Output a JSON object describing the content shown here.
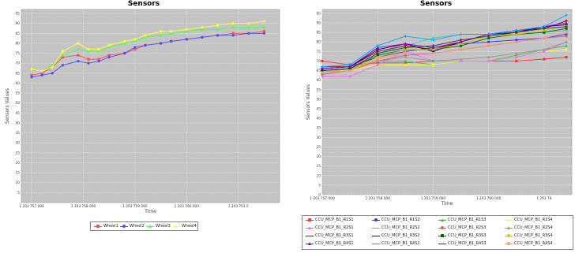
{
  "left_chart": {
    "title": "Sensors",
    "xlabel": "Time",
    "ylabel": "Sensors Values",
    "y_ticks": [
      "5",
      "10",
      "15",
      "20",
      "25",
      "30",
      "35",
      "40",
      "45",
      "50",
      "55",
      "60",
      "65",
      "70",
      "75",
      "80",
      "85",
      "90",
      "95"
    ],
    "x_ticks": [
      "1 203 757 000",
      "1 203 758 000",
      "1 203 759 000",
      "1 203 760 000",
      "1 203 761 0"
    ],
    "legend": [
      "Wheel1",
      "Wheel2",
      "Wheel3",
      "Wheel4"
    ]
  },
  "right_chart": {
    "title": "Sensors",
    "xlabel": "Time",
    "ylabel": "Sensors Values",
    "y_ticks": [
      "0",
      "5",
      "10",
      "15",
      "20",
      "25",
      "30",
      "35",
      "40",
      "45",
      "50",
      "55",
      "60",
      "65",
      "70",
      "75",
      "80",
      "85",
      "90",
      "95"
    ],
    "x_ticks": [
      "1 203 757 000",
      "1 203 758 000",
      "1 203 759 000",
      "1 203 760 000",
      "1 203 76"
    ],
    "legend": [
      "CCU_MCP_B1_R1S1",
      "CCU_MCP_B1_R1S2",
      "CCU_MCP_B1_R1S3",
      "CCU_MCP_B1_R1S4",
      "CCU_MCP_B1_R2S1",
      "CCU_MCP_B1_R2S2",
      "CCU_MCP_B1_R2S3",
      "CCU_MCP_B1_R2S4",
      "CCU_MCP_B1_R3S1",
      "CCU_MCP_B1_R3S2",
      "CCU_MCP_B1_R3S3",
      "CCU_MCP_B1_R3S4",
      "CCU_MCP_B1_R4S1",
      "CCU_MCP_B1_R4S2",
      "CCU_MCP_B1_R4S3",
      "CCU_MCP_B1_R4S4"
    ]
  },
  "chart_data": [
    {
      "type": "line",
      "title": "Sensors",
      "xlabel": "Time",
      "ylabel": "Sensors Values",
      "xlim": [
        1203756800,
        1203761800
      ],
      "ylim": [
        0,
        97
      ],
      "grid": true,
      "legend_position": "bottom",
      "series": [
        {
          "name": "Wheel1",
          "color": "#ff4d4d",
          "marker": "square",
          "x": [
            1203757000,
            1203757200,
            1203757400,
            1203757600,
            1203757900,
            1203758100,
            1203758300,
            1203758500,
            1203758800,
            1203759000,
            1203759200,
            1203759500,
            1203759700,
            1203760000,
            1203760300,
            1203760600,
            1203760900,
            1203761200,
            1203761500
          ],
          "y": [
            64,
            65,
            68,
            73,
            74,
            72,
            72,
            74,
            75,
            77,
            79,
            80,
            81,
            82,
            83,
            84,
            85,
            85,
            86
          ]
        },
        {
          "name": "Wheel2",
          "color": "#4d4dff",
          "marker": "circle",
          "x": [
            1203757000,
            1203757200,
            1203757400,
            1203757600,
            1203757900,
            1203758100,
            1203758300,
            1203758500,
            1203758800,
            1203759000,
            1203759200,
            1203759500,
            1203759700,
            1203760000,
            1203760300,
            1203760600,
            1203760900,
            1203761200,
            1203761500
          ],
          "y": [
            63,
            64,
            65,
            69,
            71,
            70,
            71,
            73,
            75,
            78,
            79,
            80,
            81,
            82,
            83,
            84,
            84,
            85,
            85
          ]
        },
        {
          "name": "Wheel3",
          "color": "#4dff4d",
          "marker": "triangle",
          "x": [
            1203757000,
            1203757200,
            1203757400,
            1203757600,
            1203757900,
            1203758100,
            1203758300,
            1203758500,
            1203758800,
            1203759000,
            1203759200,
            1203759500,
            1203759700,
            1203760000,
            1203760300,
            1203760600,
            1203760900,
            1203761200,
            1203761500
          ],
          "y": [
            67,
            66,
            69,
            74,
            77,
            76,
            76,
            78,
            80,
            81,
            83,
            84,
            85,
            86,
            87,
            87,
            88,
            88,
            88
          ]
        },
        {
          "name": "Wheel4",
          "color": "#ffff33",
          "marker": "diamond",
          "x": [
            1203757000,
            1203757200,
            1203757400,
            1203757600,
            1203757900,
            1203758100,
            1203758300,
            1203758500,
            1203758800,
            1203759000,
            1203759200,
            1203759500,
            1203759700,
            1203760000,
            1203760300,
            1203760600,
            1203760900,
            1203761200,
            1203761500
          ],
          "y": [
            67,
            66,
            68,
            76,
            80,
            77,
            77,
            79,
            81,
            82,
            84,
            86,
            86,
            87,
            88,
            89,
            90,
            90,
            91
          ]
        }
      ]
    },
    {
      "type": "line",
      "title": "Sensors",
      "xlabel": "Time",
      "ylabel": "Sensors Values",
      "xlim": [
        1203757000,
        1203761500
      ],
      "ylim": [
        0,
        97
      ],
      "grid": true,
      "legend_position": "bottom",
      "series": [
        {
          "name": "CCU_MCP_B1_R1S1",
          "color": "#ff3333",
          "marker": "square",
          "x": [
            1203757000,
            1203757500,
            1203758000,
            1203758500,
            1203759000,
            1203759500,
            1203760000,
            1203760500,
            1203761000,
            1203761400
          ],
          "y": [
            70,
            68,
            69,
            69,
            70,
            70,
            70,
            70,
            71,
            72
          ]
        },
        {
          "name": "CCU_MCP_B1_R1S2",
          "color": "#3333ff",
          "marker": "circle",
          "x": [
            1203757000,
            1203757500,
            1203758000,
            1203758500,
            1203759000,
            1203759500,
            1203760000,
            1203760500,
            1203761000,
            1203761400
          ],
          "y": [
            66,
            67,
            72,
            75,
            77,
            79,
            80,
            81,
            82,
            84
          ]
        },
        {
          "name": "CCU_MCP_B1_R1S3",
          "color": "#33cc33",
          "marker": "triangle",
          "x": [
            1203757000,
            1203757500,
            1203758000,
            1203758500,
            1203759000,
            1203759500,
            1203760000,
            1203760500,
            1203761000,
            1203761400
          ],
          "y": [
            64,
            66,
            70,
            70,
            68,
            70,
            70,
            73,
            76,
            78
          ]
        },
        {
          "name": "CCU_MCP_B1_R1S4",
          "color": "#ffff33",
          "marker": "diamond",
          "x": [
            1203757000,
            1203757500,
            1203758000,
            1203758500,
            1203759000,
            1203759500,
            1203760000,
            1203760500,
            1203761000,
            1203761400
          ],
          "y": [
            64,
            65,
            68,
            68,
            68,
            70,
            70,
            72,
            75,
            76
          ]
        },
        {
          "name": "CCU_MCP_B1_R2S1",
          "color": "#ff66ff",
          "marker": "triangle",
          "x": [
            1203757000,
            1203757500,
            1203758000,
            1203758500,
            1203759000,
            1203759500,
            1203760000,
            1203760500,
            1203761000,
            1203761400
          ],
          "y": [
            62,
            62,
            68,
            75,
            70,
            70,
            70,
            72,
            75,
            80
          ]
        },
        {
          "name": "CCU_MCP_B1_R2S2",
          "color": "#33cccc",
          "marker": "plus",
          "x": [
            1203757000,
            1203757500,
            1203758000,
            1203758500,
            1203759000,
            1203759500,
            1203760000,
            1203760500,
            1203761000,
            1203761400
          ],
          "y": [
            65,
            66,
            74,
            78,
            82,
            84,
            84,
            84,
            85,
            86
          ]
        },
        {
          "name": "CCU_MCP_B1_R2S3",
          "color": "#cc6666",
          "marker": "circle",
          "x": [
            1203757000,
            1203757500,
            1203758000,
            1203758500,
            1203759000,
            1203759500,
            1203760000,
            1203760500,
            1203761000,
            1203761400
          ],
          "y": [
            63,
            65,
            70,
            73,
            74,
            76,
            78,
            80,
            82,
            83
          ]
        },
        {
          "name": "CCU_MCP_B1_R2S4",
          "color": "#999999",
          "marker": "triangle",
          "x": [
            1203757000,
            1203757500,
            1203758000,
            1203758500,
            1203759000,
            1203759500,
            1203760000,
            1203760500,
            1203761000,
            1203761400
          ],
          "y": [
            64,
            66,
            70,
            72,
            70,
            71,
            72,
            74,
            76,
            80
          ]
        },
        {
          "name": "CCU_MCP_B1_R3S1",
          "color": "#990000",
          "marker": "plus",
          "x": [
            1203757000,
            1203757500,
            1203758000,
            1203758500,
            1203759000,
            1203759500,
            1203760000,
            1203760500,
            1203761000,
            1203761400
          ],
          "y": [
            67,
            67,
            75,
            78,
            76,
            80,
            84,
            86,
            87,
            91
          ]
        },
        {
          "name": "CCU_MCP_B1_R3S2",
          "color": "#000099",
          "marker": "plus",
          "x": [
            1203757000,
            1203757500,
            1203758000,
            1203758500,
            1203759000,
            1203759500,
            1203760000,
            1203760500,
            1203761000,
            1203761400
          ],
          "y": [
            66,
            67,
            76,
            79,
            75,
            80,
            84,
            85,
            88,
            89
          ]
        },
        {
          "name": "CCU_MCP_B1_R3S3",
          "color": "#006600",
          "marker": "square",
          "x": [
            1203757000,
            1203757500,
            1203758000,
            1203758500,
            1203759000,
            1203759500,
            1203760000,
            1203760500,
            1203761000,
            1203761400
          ],
          "y": [
            65,
            66,
            73,
            76,
            76,
            78,
            82,
            84,
            85,
            87
          ]
        },
        {
          "name": "CCU_MCP_B1_R3S4",
          "color": "#cccc00",
          "marker": "circle",
          "x": [
            1203757000,
            1203757500,
            1203758000,
            1203758500,
            1203759000,
            1203759500,
            1203760000,
            1203760500,
            1203761000,
            1203761400
          ],
          "y": [
            64,
            65,
            72,
            76,
            76,
            79,
            83,
            84,
            86,
            88
          ]
        },
        {
          "name": "CCU_MCP_B1_R4S1",
          "color": "#9900cc",
          "marker": "triangle",
          "x": [
            1203757000,
            1203757500,
            1203758000,
            1203758500,
            1203759000,
            1203759500,
            1203760000,
            1203760500,
            1203761000,
            1203761400
          ],
          "y": [
            66,
            67,
            77,
            79,
            77,
            80,
            84,
            86,
            88,
            90
          ]
        },
        {
          "name": "CCU_MCP_B1_R4S2",
          "color": "#00aaff",
          "marker": "plus",
          "x": [
            1203757000,
            1203757500,
            1203758000,
            1203758500,
            1203759000,
            1203759500,
            1203760000,
            1203760500,
            1203761000,
            1203761400
          ],
          "y": [
            67,
            68,
            78,
            83,
            81,
            84,
            84,
            86,
            88,
            94
          ]
        },
        {
          "name": "CCU_MCP_B1_R4S3",
          "color": "#333333",
          "marker": "plus",
          "x": [
            1203757000,
            1203757500,
            1203758000,
            1203758500,
            1203759000,
            1203759500,
            1203760000,
            1203760500,
            1203761000,
            1203761400
          ],
          "y": [
            65,
            66,
            74,
            77,
            78,
            81,
            83,
            85,
            87,
            88
          ]
        },
        {
          "name": "CCU_MCP_B1_R4S4",
          "color": "#ff9966",
          "marker": "circle",
          "x": [
            1203757000,
            1203757500,
            1203758000,
            1203758500,
            1203759000,
            1203759500,
            1203760000,
            1203760500,
            1203761000,
            1203761400
          ],
          "y": [
            64,
            65,
            71,
            74,
            74,
            76,
            78,
            80,
            82,
            85
          ]
        }
      ]
    }
  ]
}
